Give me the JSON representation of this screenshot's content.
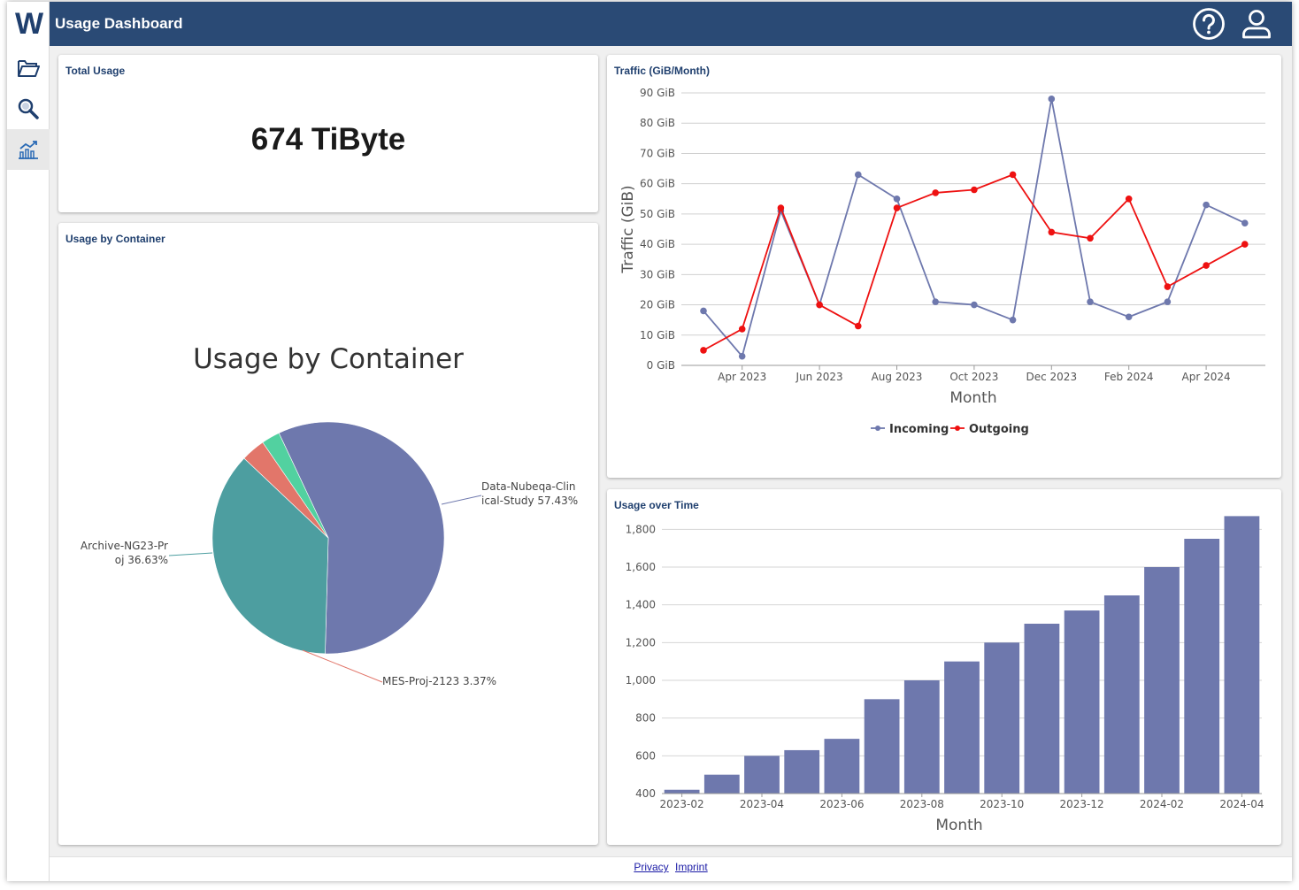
{
  "header": {
    "title": "Usage Dashboard"
  },
  "sidebar": {
    "logo": "W",
    "items": [
      {
        "icon": "folder-icon",
        "active": false
      },
      {
        "icon": "search-icon",
        "active": false
      },
      {
        "icon": "chart-icon",
        "active": true
      }
    ]
  },
  "total_usage": {
    "title": "Total Usage",
    "value": "674 TiByte"
  },
  "container_card": {
    "title": "Usage by Container"
  },
  "traffic_card": {
    "title": "Traffic (GiB/Month)"
  },
  "over_time_card": {
    "title": "Usage over Time"
  },
  "footer": {
    "privacy": "Privacy",
    "imprint": "Imprint"
  },
  "colors": {
    "header": "#2a4a75",
    "incoming": "#6e78ad",
    "outgoing": "#ee1111",
    "bar": "#6e78ad"
  },
  "chart_data": [
    {
      "type": "pie",
      "title": "Usage by Container",
      "slices": [
        {
          "label": "Data-Nubeqa-Clinical-Study 57.43%",
          "label_lines": [
            "Data-Nubeqa-Clin",
            "ical-Study 57.43%"
          ],
          "value": 57.43,
          "color": "#6e78ad"
        },
        {
          "label": "Archive-NG23-Proj 36.63%",
          "label_lines": [
            "Archive-NG23-Pr",
            "oj 36.63%"
          ],
          "value": 36.63,
          "color": "#4d9ea0"
        },
        {
          "label": "MES-Proj-2123 3.37%",
          "label_lines": [
            "MES-Proj-2123 3.37%"
          ],
          "value": 3.37,
          "color": "#e2766a"
        },
        {
          "label": "",
          "label_lines": [],
          "value": 2.57,
          "color": "#52d1a0"
        }
      ]
    },
    {
      "type": "line",
      "xlabel": "Month",
      "ylabel": "Traffic (GiB)",
      "ylim": [
        0,
        90
      ],
      "yticks": [
        "0 GiB",
        "10 GiB",
        "20 GiB",
        "30 GiB",
        "40 GiB",
        "50 GiB",
        "60 GiB",
        "70 GiB",
        "80 GiB",
        "90 GiB"
      ],
      "xticks": [
        "Apr 2023",
        "Jun 2023",
        "Aug 2023",
        "Oct 2023",
        "Dec 2023",
        "Feb 2024",
        "Apr 2024"
      ],
      "x": [
        "2023-03",
        "2023-04",
        "2023-05",
        "2023-06",
        "2023-07",
        "2023-08",
        "2023-09",
        "2023-10",
        "2023-11",
        "2023-12",
        "2024-01",
        "2024-02",
        "2024-03",
        "2024-04",
        "2024-05"
      ],
      "legend": "bottom",
      "series": [
        {
          "name": "Incoming",
          "color": "#6e78ad",
          "values": [
            18,
            3,
            51,
            20,
            63,
            55,
            21,
            20,
            15,
            88,
            21,
            16,
            21,
            53,
            47
          ]
        },
        {
          "name": "Outgoing",
          "color": "#ee1111",
          "values": [
            5,
            12,
            52,
            20,
            13,
            52,
            57,
            58,
            63,
            44,
            42,
            55,
            26,
            33,
            40
          ]
        }
      ]
    },
    {
      "type": "bar",
      "xlabel": "Month",
      "ylabel": "",
      "ylim": [
        400,
        1900
      ],
      "yticks": [
        "400",
        "600",
        "800",
        "1,000",
        "1,200",
        "1,400",
        "1,600",
        "1,800"
      ],
      "xticks": [
        "2023-02",
        "2023-04",
        "2023-06",
        "2023-08",
        "2023-10",
        "2023-12",
        "2024-02",
        "2024-04"
      ],
      "categories": [
        "2023-02",
        "2023-03",
        "2023-04",
        "2023-05",
        "2023-06",
        "2023-07",
        "2023-08",
        "2023-09",
        "2023-10",
        "2023-11",
        "2023-12",
        "2024-01",
        "2024-02",
        "2024-03",
        "2024-04"
      ],
      "values": [
        420,
        500,
        600,
        630,
        690,
        900,
        1000,
        1100,
        1200,
        1300,
        1370,
        1450,
        1600,
        1750,
        1870
      ]
    }
  ]
}
